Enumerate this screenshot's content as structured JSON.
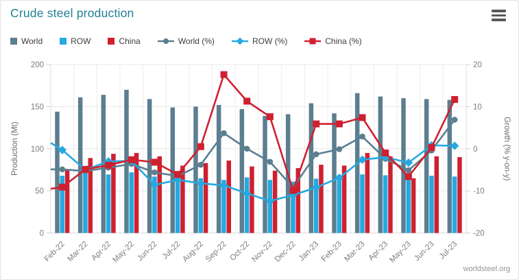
{
  "header": {
    "title": "Crude steel production",
    "menu_icon": "hamburger-menu"
  },
  "footer": {
    "credit": "worldsteel.org"
  },
  "chart_data": {
    "type": "combo bar+line",
    "title": "Crude steel production",
    "categories": [
      "Feb-22",
      "Mar-22",
      "Apr-22",
      "May-22",
      "Jun-22",
      "Jul-22",
      "Aug-22",
      "Sep-22",
      "Oct-22",
      "Nov-22",
      "Dec-22",
      "Jan-23",
      "Feb-23",
      "Mar-23",
      "Apr-23",
      "May-23",
      "Jun-23",
      "Jul-23"
    ],
    "bar_series": [
      {
        "name": "World",
        "color": "#5b7e90",
        "values": [
          144,
          161,
          164,
          170,
          159,
          149,
          150,
          152,
          147,
          139,
          141,
          154,
          142,
          166,
          162,
          160,
          159,
          158
        ]
      },
      {
        "name": "ROW",
        "color": "#25a9e0",
        "values": [
          68,
          71,
          69.5,
          72,
          67,
          65,
          65,
          63,
          66,
          63,
          61,
          64.5,
          63,
          69.5,
          68.5,
          69,
          68,
          67
        ]
      },
      {
        "name": "China",
        "color": "#cf2030",
        "values": [
          75,
          89,
          94,
          95,
          91,
          80,
          83,
          86,
          79,
          74,
          77,
          81,
          80,
          95,
          91,
          65,
          91,
          90
        ]
      }
    ],
    "line_series": [
      {
        "name": "World (%)",
        "color": "#5b7e90",
        "marker": "circle",
        "lead_in_value": -4.9,
        "values": [
          -4.9,
          -5.3,
          -4.5,
          -3.6,
          -5.6,
          -6.5,
          -3.8,
          3.7,
          0,
          -3.1,
          -9.2,
          -1.3,
          -0.1,
          2.9,
          -2.4,
          -5.1,
          -0.4,
          6.9
        ]
      },
      {
        "name": "ROW (%)",
        "color": "#25a9e0",
        "marker": "diamond",
        "lead_in_value": 1.4,
        "values": [
          -0.3,
          -5,
          -3,
          -2.9,
          -8.6,
          -7.4,
          -8.2,
          -8.7,
          -10.6,
          -12.4,
          -11,
          -9.2,
          -6.9,
          -2.6,
          -2,
          -3.3,
          0.8,
          0.7
        ]
      },
      {
        "name": "China (%)",
        "color": "#cf2030",
        "marker": "square",
        "lead_in_value": -9.5,
        "values": [
          -9.1,
          -4.9,
          -3.9,
          -2.6,
          -3.2,
          -6.1,
          0.5,
          17.6,
          11.3,
          7.6,
          -9.9,
          5.9,
          5.9,
          7.4,
          -1,
          -6.6,
          0.3,
          11.7
        ]
      }
    ],
    "left_axis": {
      "label": "Production (Mt)",
      "ticks": [
        0,
        50,
        100,
        150,
        200
      ],
      "range": [
        0,
        200
      ]
    },
    "right_axis": {
      "label": "Growth (% y-on-y)",
      "ticks": [
        -20,
        -10,
        0,
        10,
        20
      ],
      "range": [
        -20,
        20
      ]
    },
    "grid": true,
    "legend_position": "top"
  }
}
